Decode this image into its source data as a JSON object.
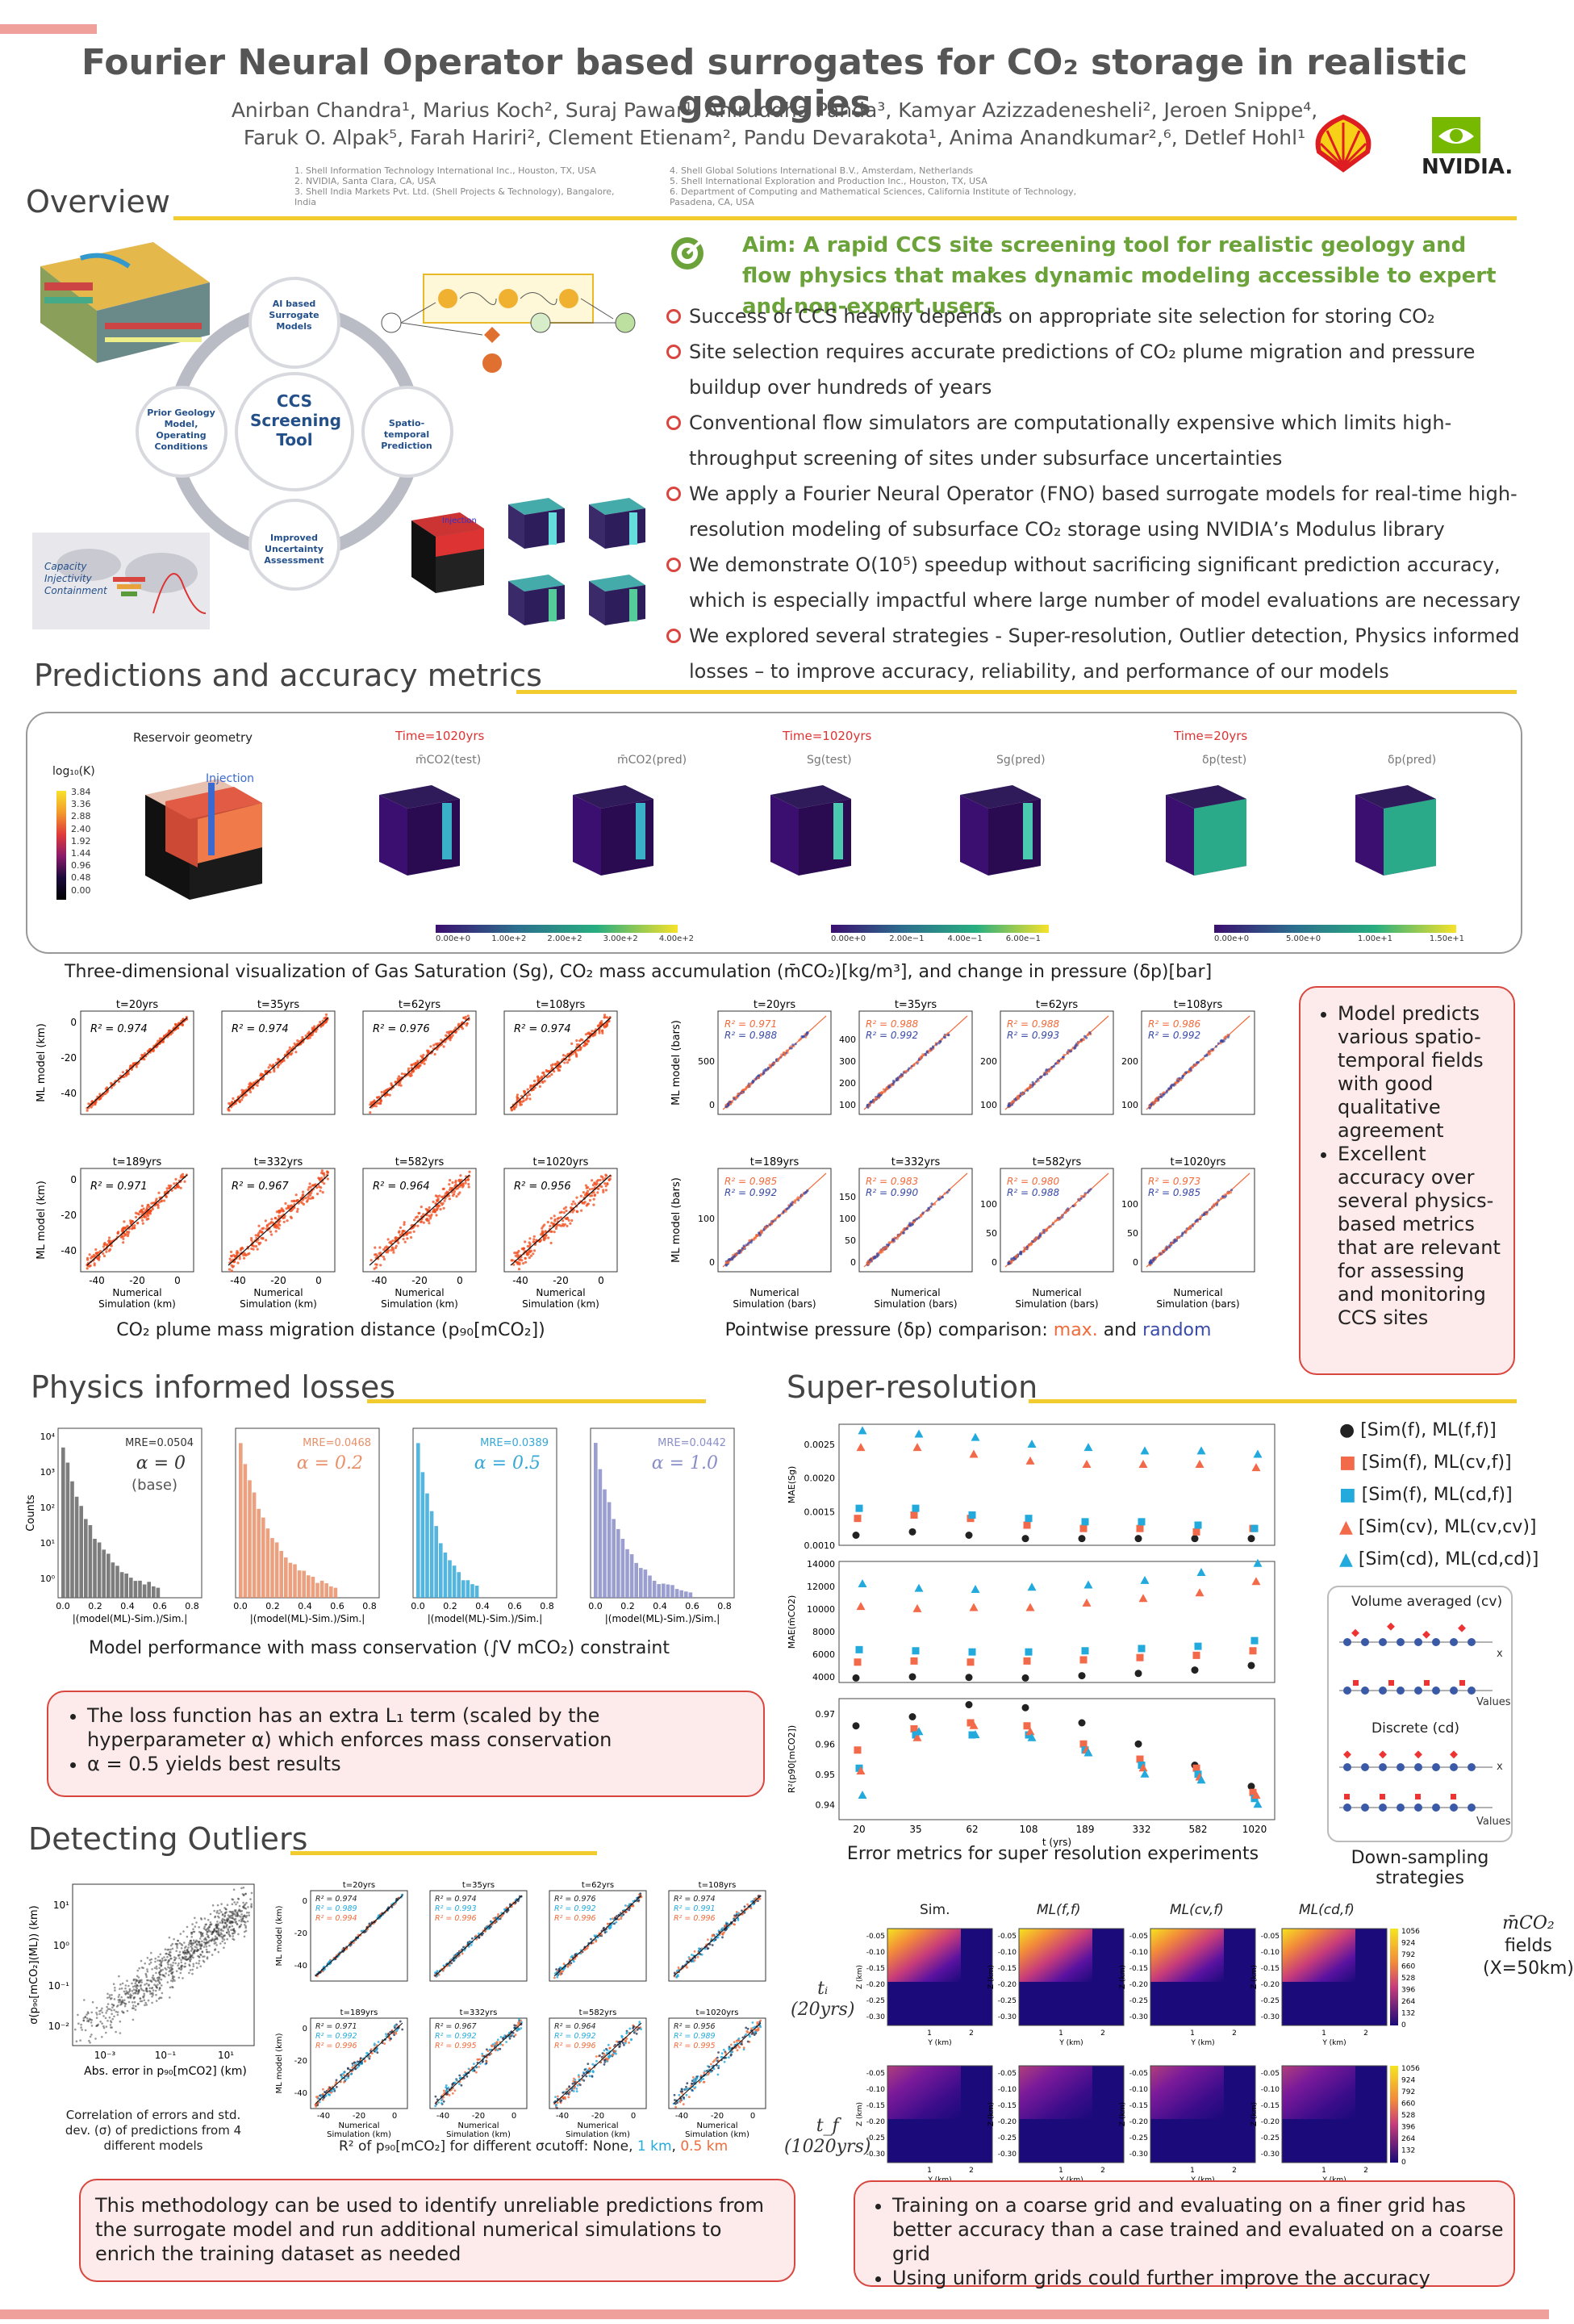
{
  "title": "Fourier Neural Operator based surrogates for CO₂ storage in realistic geologies",
  "authors_line1": "Anirban Chandra¹, Marius Koch², Suraj Pawar¹, Aniruddha Panda³, Kamyar Azizzadenesheli², Jeroen Snippe⁴,",
  "authors_line2": "Faruk O. Alpak⁵, Farah Hariri², Clement Etienam², Pandu Devarakota¹, Anima Anandkumar²,⁶, Detlef Hohl¹",
  "affiliations_left": [
    "1. Shell Information Technology International Inc., Houston, TX, USA",
    "2. NVIDIA, Santa Clara, CA, USA",
    "3. Shell India Markets Pvt. Ltd. (Shell Projects & Technology), Bangalore, India"
  ],
  "affiliations_right": [
    "4. Shell Global Solutions International B.V., Amsterdam, Netherlands",
    "5. Shell International Exploration and Production Inc., Houston, TX, USA",
    "6. Department of Computing and Mathematical Sciences, California Institute of Technology, Pasadena, CA, USA"
  ],
  "logos": {
    "nvidia": "NVIDIA."
  },
  "overview": {
    "heading": "Overview",
    "cycle": {
      "center": "CCS Screening Tool",
      "top": "AI based Surrogate Models",
      "right": "Spatio-temporal Prediction",
      "bottom": "Improved Uncertainty Assessment",
      "left": "Prior Geology Model, Operating Conditions"
    },
    "map_legend": [
      "Capacity",
      "Injectivity",
      "Containment"
    ],
    "injection_label": "Injection",
    "aim": "Aim: A rapid CCS site screening tool for realistic geology and flow physics that makes dynamic modeling accessible to expert and non-expert users",
    "bullets": [
      "Success of CCS heavily depends on appropriate site selection for storing CO₂",
      "Site selection requires accurate predictions of CO₂ plume migration and pressure buildup over hundreds of years",
      "Conventional flow simulators are computationally expensive which limits high-throughput screening of sites under subsurface uncertainties",
      "We apply a Fourier Neural Operator (FNO) based surrogate models for real-time high-resolution modeling of subsurface CO₂ storage using NVIDIA’s Modulus library",
      "We demonstrate O(10⁵) speedup without sacrificing significant prediction accuracy, which is especially impactful where large number of model evaluations are necessary",
      "We explored several strategies - Super-resolution, Outlier detection, Physics informed losses – to improve accuracy, reliability, and performance of our models"
    ]
  },
  "predictions": {
    "heading": "Predictions and accuracy metrics",
    "geometry_title": "Reservoir geometry",
    "cbar_label": "log₁₀(K)",
    "cbar_ticks": [
      "3.84",
      "3.36",
      "2.88",
      "2.40",
      "1.92",
      "1.44",
      "0.96",
      "0.48",
      "0.00"
    ],
    "injection": "Injection",
    "times": [
      "Time=1020yrs",
      "Time=1020yrs",
      "Time=20yrs"
    ],
    "field_labels": [
      "m̄CO2(test)",
      "m̄CO2(pred)",
      "Sg(test)",
      "Sg(pred)",
      "δp(test)",
      "δp(pred)"
    ],
    "cbars": [
      [
        "0.00e+0",
        "1.00e+2",
        "2.00e+2",
        "3.00e+2",
        "4.00e+2"
      ],
      [
        "0.00e+0",
        "2.00e−1",
        "4.00e−1",
        "6.00e−1"
      ],
      [
        "0.00e+0",
        "5.00e+0",
        "1.00e+1",
        "1.50e+1"
      ]
    ],
    "caption": "Three-dimensional visualization of Gas Saturation (Sg), CO₂ mass accumulation (m̄CO₂)[kg/m³], and change in pressure (δp)[bar]"
  },
  "plume": {
    "panels": [
      {
        "t": "t=20yrs",
        "r2": "R² = 0.974"
      },
      {
        "t": "t=35yrs",
        "r2": "R² = 0.974"
      },
      {
        "t": "t=62yrs",
        "r2": "R² = 0.976"
      },
      {
        "t": "t=108yrs",
        "r2": "R² = 0.974"
      },
      {
        "t": "t=189yrs",
        "r2": "R² = 0.971"
      },
      {
        "t": "t=332yrs",
        "r2": "R² = 0.967"
      },
      {
        "t": "t=582yrs",
        "r2": "R² = 0.964"
      },
      {
        "t": "t=1020yrs",
        "r2": "R² = 0.956"
      }
    ],
    "ylabel": "ML model (km)",
    "xlabel1": "Numerical",
    "xlabel2": "Simulation (km)",
    "caption": "CO₂ plume mass migration distance (p₉₀[mCO₂])"
  },
  "pressure": {
    "panels": [
      {
        "t": "t=20yrs",
        "max": "R² = 0.971",
        "rand": "R² = 0.988"
      },
      {
        "t": "t=35yrs",
        "max": "R² = 0.988",
        "rand": "R² = 0.992"
      },
      {
        "t": "t=62yrs",
        "max": "R² = 0.988",
        "rand": "R² = 0.993"
      },
      {
        "t": "t=108yrs",
        "max": "R² = 0.986",
        "rand": "R² = 0.992"
      },
      {
        "t": "t=189yrs",
        "max": "R² = 0.985",
        "rand": "R² = 0.992"
      },
      {
        "t": "t=332yrs",
        "max": "R² = 0.983",
        "rand": "R² = 0.990"
      },
      {
        "t": "t=582yrs",
        "max": "R² = 0.980",
        "rand": "R² = 0.988"
      },
      {
        "t": "t=1020yrs",
        "max": "R² = 0.973",
        "rand": "R² = 0.985"
      }
    ],
    "ylabel": "ML model (bars)",
    "xlabel1": "Numerical",
    "xlabel2": "Simulation (bars)",
    "caption_pre": "Pointwise pressure (δp) comparison: ",
    "caption_max": "max.",
    "caption_and": " and ",
    "caption_rand": "random"
  },
  "model_box": [
    "Model predicts various spatio-temporal fields with good qualitative agreement",
    "Excellent accuracy over several physics-based metrics that are relevant for assessing and monitoring CCS sites"
  ],
  "physics": {
    "heading": "Physics informed losses",
    "panels": [
      {
        "mre": "MRE=0.0504",
        "alpha": "α = 0",
        "base": "(base)",
        "color": "#666666"
      },
      {
        "mre": "MRE=0.0468",
        "alpha": "α = 0.2",
        "base": "",
        "color": "#e8906a"
      },
      {
        "mre": "MRE=0.0389",
        "alpha": "α = 0.5",
        "base": "",
        "color": "#36a8d8"
      },
      {
        "mre": "MRE=0.0442",
        "alpha": "α = 1.0",
        "base": "",
        "color": "#8a8ec8"
      }
    ],
    "ylabel": "Counts",
    "xlabel": "|(model(ML)-Sim.)/Sim.|",
    "caption": "Model performance with mass conservation (∫V mCO₂) constraint",
    "box": [
      "The loss function has an extra L₁ term (scaled by the hyperparameter α) which enforces mass conservation",
      "α = 0.5 yields best results"
    ]
  },
  "outliers": {
    "heading": "Detecting Outliers",
    "scatter_ylabel": "σ(p₉₀[mCO₂](ML)) (km)",
    "scatter_xlabel": "Abs. error in p₉₀[mCO2] (km)",
    "scatter_caption": [
      "Correlation of errors and std.",
      "dev. (σ) of predictions from 4",
      "different models"
    ],
    "panels": [
      {
        "t": "t=20yrs",
        "r": [
          "R² = 0.974",
          "R² = 0.989",
          "R² = 0.994"
        ]
      },
      {
        "t": "t=35yrs",
        "r": [
          "R² = 0.974",
          "R² = 0.993",
          "R² = 0.996"
        ]
      },
      {
        "t": "t=62yrs",
        "r": [
          "R² = 0.976",
          "R² = 0.992",
          "R² = 0.996"
        ]
      },
      {
        "t": "t=108yrs",
        "r": [
          "R² = 0.974",
          "R² = 0.991",
          "R² = 0.996"
        ]
      },
      {
        "t": "t=189yrs",
        "r": [
          "R² = 0.971",
          "R² = 0.992",
          "R² = 0.996"
        ]
      },
      {
        "t": "t=332yrs",
        "r": [
          "R² = 0.967",
          "R² = 0.992",
          "R² = 0.995"
        ]
      },
      {
        "t": "t=582yrs",
        "r": [
          "R² = 0.964",
          "R² = 0.992",
          "R² = 0.996"
        ]
      },
      {
        "t": "t=1020yrs",
        "r": [
          "R² = 0.956",
          "R² = 0.989",
          "R² = 0.995"
        ]
      }
    ],
    "ylabel": "ML model (km)",
    "xlabel1": "Numerical",
    "xlabel2": "Simulation (km)",
    "caption_pre": "R² of p₉₀[mCO₂] for different σcutoff: None, ",
    "caption_1km": "1 km",
    "caption_sep": ", ",
    "caption_05": "0.5 km",
    "box": "This methodology can be used to identify unreliable predictions from the surrogate model and run additional numerical simulations to enrich the training dataset as needed"
  },
  "superres": {
    "heading": "Super-resolution",
    "legend": [
      "[Sim(f), ML(f,f)]",
      "[Sim(f), ML(cv,f)]",
      "[Sim(f), ML(cd,f)]",
      "[Sim(cv), ML(cv,cv)]",
      "[Sim(cd), ML(cd,cd)]"
    ],
    "caption": "Error metrics for super resolution experiments",
    "downsample_caption": "Down-sampling strategies",
    "ds_vol": "Volume averaged (cv)",
    "ds_disc": "Discrete (cd)",
    "ds_x": "x",
    "ds_values": "Values",
    "map_cols": [
      "Sim.",
      "ML(f,f)",
      "ML(cv,f)",
      "ML(cd,f)"
    ],
    "map_rows": [
      {
        "t": "tᵢ",
        "yrs": "(20yrs)"
      },
      {
        "t": "t_f",
        "yrs": "(1020yrs)"
      }
    ],
    "map_cbar": [
      "1056",
      "924",
      "792",
      "660",
      "528",
      "396",
      "264",
      "132",
      "0"
    ],
    "fields_label": [
      "m̄CO₂",
      "fields",
      "(X=50km)"
    ],
    "box": [
      "Training on a coarse grid and evaluating on a finer grid has better accuracy than a case trained and evaluated on a coarse grid",
      "Using uniform grids could further improve the accuracy"
    ]
  },
  "chart_data": [
    {
      "type": "scatter",
      "title": "MAE(Sg)",
      "xlabel": "t (yrs)",
      "categories": [
        "20",
        "35",
        "62",
        "108",
        "189",
        "332",
        "582",
        "1020"
      ],
      "ylim": [
        0.001,
        0.0028
      ],
      "yticks": [
        "0.0025",
        "0.0020",
        "0.0015",
        "0.0010"
      ],
      "series": [
        {
          "name": "[Sim(f), ML(f,f)]",
          "color": "#222222",
          "marker": "circle",
          "values": [
            0.00115,
            0.0012,
            0.00115,
            0.0011,
            0.0011,
            0.0011,
            0.0011,
            0.0011
          ]
        },
        {
          "name": "[Sim(f), ML(cv,f)]",
          "color": "#f26a4a",
          "marker": "square",
          "values": [
            0.0014,
            0.00145,
            0.0014,
            0.0013,
            0.00125,
            0.00125,
            0.0012,
            0.00125
          ]
        },
        {
          "name": "[Sim(f), ML(cd,f)]",
          "color": "#22aadd",
          "marker": "square",
          "values": [
            0.00155,
            0.00155,
            0.00145,
            0.0014,
            0.00135,
            0.00135,
            0.0013,
            0.00125
          ]
        },
        {
          "name": "[Sim(cv), ML(cv,cv)]",
          "color": "#f26a4a",
          "marker": "triangle",
          "values": [
            0.00245,
            0.00245,
            0.00235,
            0.00225,
            0.0022,
            0.0022,
            0.0022,
            0.00215
          ]
        },
        {
          "name": "[Sim(cd), ML(cd,cd)]",
          "color": "#22aadd",
          "marker": "triangle",
          "values": [
            0.0027,
            0.00265,
            0.0026,
            0.0025,
            0.00245,
            0.0024,
            0.0024,
            0.00235
          ]
        }
      ]
    },
    {
      "type": "scatter",
      "title": "MAE(m̄CO2)",
      "xlabel": "t (yrs)",
      "categories": [
        "20",
        "35",
        "62",
        "108",
        "189",
        "332",
        "582",
        "1020"
      ],
      "ylim": [
        3500,
        14200
      ],
      "yticks": [
        "14000",
        "12000",
        "10000",
        "8000",
        "6000",
        "4000"
      ],
      "series": [
        {
          "name": "[Sim(f), ML(f,f)]",
          "color": "#222222",
          "marker": "circle",
          "values": [
            3900,
            4000,
            3950,
            3900,
            4100,
            4300,
            4600,
            5000
          ]
        },
        {
          "name": "[Sim(f), ML(cv,f)]",
          "color": "#f26a4a",
          "marker": "square",
          "values": [
            5300,
            5400,
            5300,
            5400,
            5500,
            5700,
            5900,
            6300
          ]
        },
        {
          "name": "[Sim(f), ML(cd,f)]",
          "color": "#22aadd",
          "marker": "square",
          "values": [
            6400,
            6300,
            6200,
            6200,
            6300,
            6500,
            6700,
            7200
          ]
        },
        {
          "name": "[Sim(cv), ML(cv,cv)]",
          "color": "#f26a4a",
          "marker": "triangle",
          "values": [
            10200,
            10000,
            10100,
            10100,
            10500,
            10900,
            11400,
            12400
          ]
        },
        {
          "name": "[Sim(cd), ML(cd,cd)]",
          "color": "#22aadd",
          "marker": "triangle",
          "values": [
            12200,
            11800,
            11700,
            11900,
            12100,
            12500,
            13200,
            14000
          ]
        }
      ]
    },
    {
      "type": "scatter",
      "title": "R²(p90[mCO2])",
      "xlabel": "t (yrs)",
      "categories": [
        "20",
        "35",
        "62",
        "108",
        "189",
        "332",
        "582",
        "1020"
      ],
      "ylim": [
        0.935,
        0.975
      ],
      "yticks": [
        "0.97",
        "0.96",
        "0.95",
        "0.94"
      ],
      "series": [
        {
          "name": "[Sim(f), ML(f,f)]",
          "color": "#222222",
          "marker": "circle",
          "values": [
            0.966,
            0.969,
            0.973,
            0.972,
            0.967,
            0.96,
            0.953,
            0.946
          ]
        },
        {
          "name": "[Sim(f), ML(cv,f)]",
          "color": "#f26a4a",
          "marker": "square",
          "values": [
            0.958,
            0.965,
            0.967,
            0.966,
            0.96,
            0.955,
            0.952,
            0.944
          ]
        },
        {
          "name": "[Sim(f), ML(cd,f)]",
          "color": "#22aadd",
          "marker": "square",
          "values": [
            0.952,
            0.963,
            0.963,
            0.963,
            0.958,
            0.953,
            0.95,
            0.942
          ]
        },
        {
          "name": "[Sim(cv), ML(cv,cv)]",
          "color": "#f26a4a",
          "marker": "triangle",
          "values": [
            0.951,
            0.962,
            0.966,
            0.964,
            0.958,
            0.952,
            0.949,
            0.943
          ]
        },
        {
          "name": "[Sim(cd), ML(cd,cd)]",
          "color": "#22aadd",
          "marker": "triangle",
          "values": [
            0.943,
            0.964,
            0.963,
            0.962,
            0.957,
            0.95,
            0.948,
            0.94
          ]
        }
      ]
    }
  ]
}
